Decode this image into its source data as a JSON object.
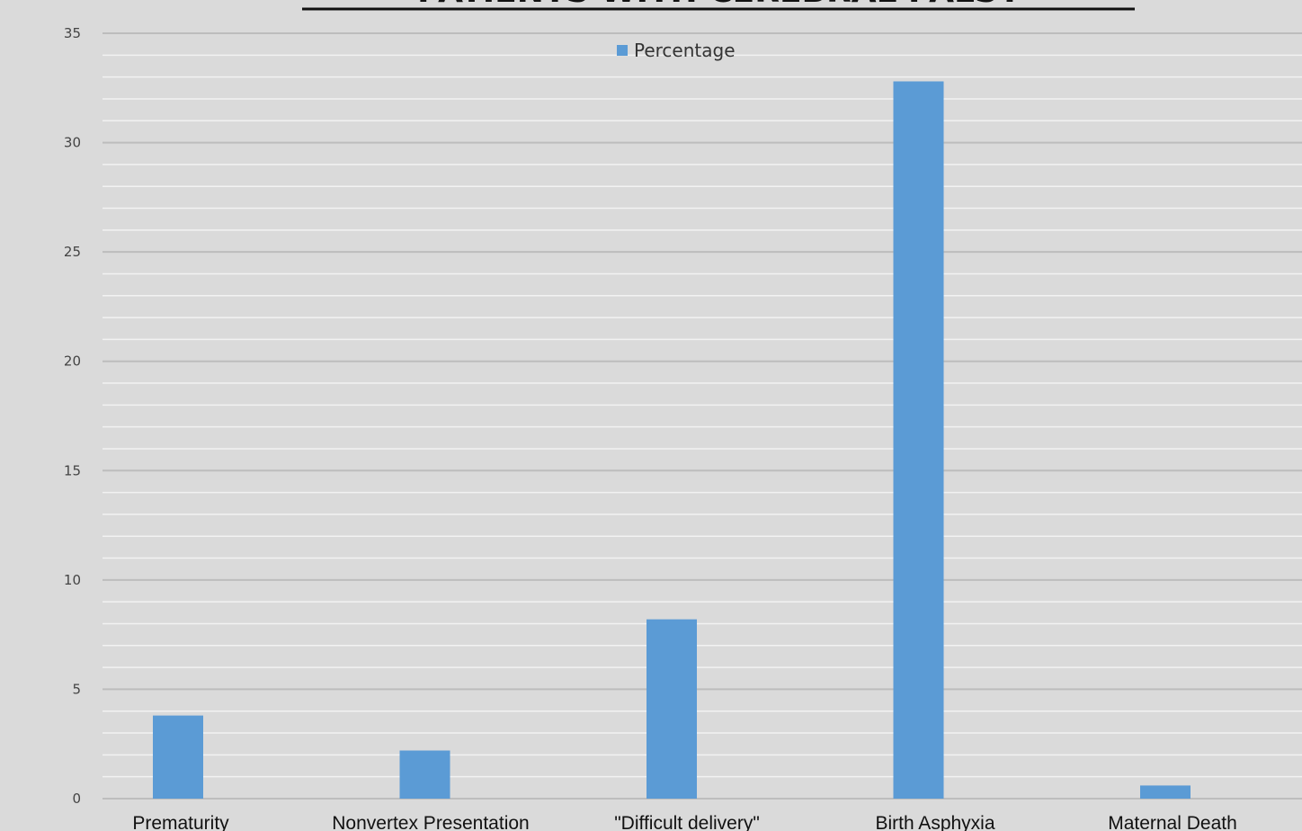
{
  "chart_data": {
    "type": "bar",
    "title": "PATIENTS WITH CEREBRAL PALSY",
    "categories": [
      "Prematurity",
      "Nonvertex Presentation",
      "\"Difficult delivery\"",
      "Birth Asphyxia",
      "Maternal Death"
    ],
    "series": [
      {
        "name": "Percentage",
        "values": [
          3.8,
          2.2,
          8.2,
          32.8,
          0.6
        ],
        "color": "#5b9bd5"
      }
    ],
    "xlabel": "",
    "ylabel": "",
    "ylim": [
      0,
      35
    ],
    "yticks": [
      0,
      5,
      10,
      15,
      20,
      25,
      30,
      35
    ],
    "grid": true,
    "legend_position": "top-center"
  }
}
